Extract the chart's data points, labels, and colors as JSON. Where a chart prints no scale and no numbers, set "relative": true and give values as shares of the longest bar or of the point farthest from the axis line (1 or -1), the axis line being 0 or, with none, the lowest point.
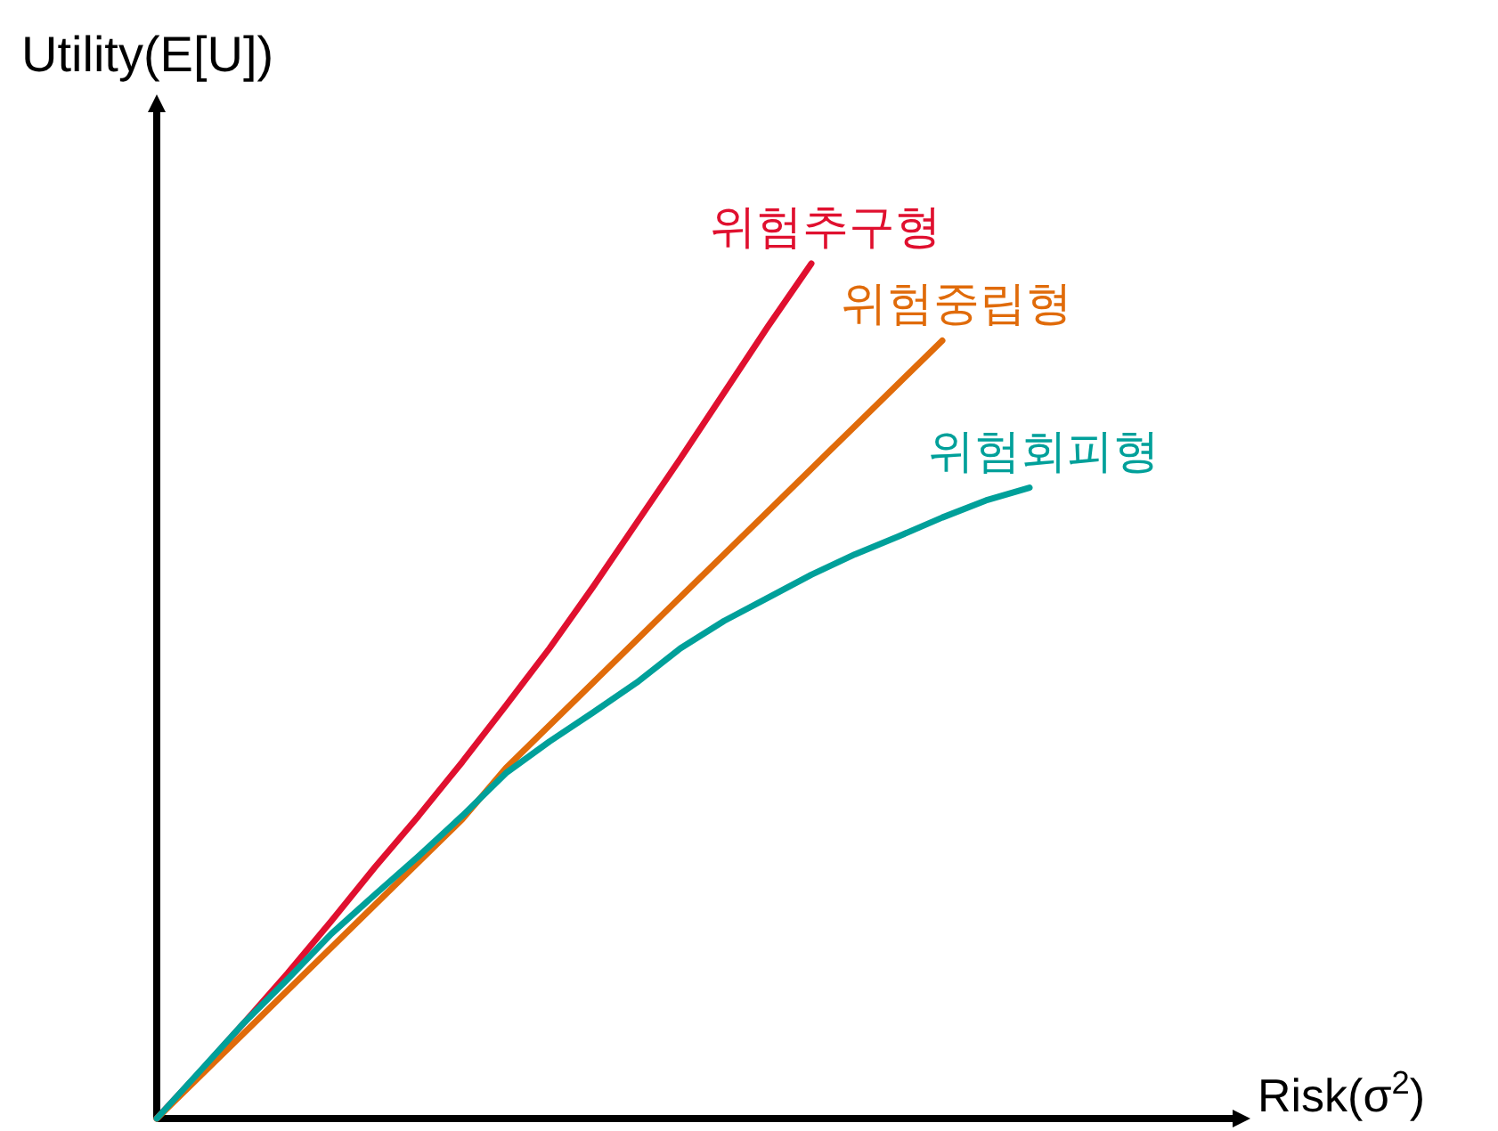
{
  "chart_data": {
    "type": "line",
    "relative": true,
    "xlabel": "Risk(σ$^{2}$)",
    "ylabel": "Utility(E[U])",
    "categories": [
      null,
      null,
      null,
      null,
      null,
      null,
      null,
      null,
      null,
      null,
      null,
      null,
      null,
      null,
      null,
      null,
      null,
      null,
      null,
      null,
      null
    ],
    "series": [
      {
        "name": "위험추구형",
        "color": "#e0102f",
        "values": [
          0,
          0.055,
          0.112,
          0.17,
          0.231,
          0.294,
          0.354,
          0.417,
          0.483,
          0.55,
          0.622,
          0.697,
          0.772,
          0.849,
          0.926,
          1,
          null,
          null,
          null,
          null,
          null
        ]
      },
      {
        "name": "위험중립형",
        "color": "#e06b0a",
        "values": [
          0,
          0.05,
          0.1,
          0.15,
          0.2,
          0.25,
          0.3,
          0.35,
          0.41,
          0.46,
          0.51,
          0.56,
          0.61,
          0.66,
          0.71,
          0.76,
          0.81,
          0.86,
          0.91,
          null,
          null
        ]
      },
      {
        "name": "위험회피형",
        "color": "#00a09a",
        "values": [
          0,
          0.056,
          0.112,
          0.163,
          0.216,
          0.262,
          0.307,
          0.354,
          0.404,
          0.441,
          0.475,
          0.51,
          0.55,
          0.582,
          0.609,
          0.636,
          0.66,
          0.681,
          0.703,
          0.723,
          0.738
        ]
      }
    ]
  }
}
